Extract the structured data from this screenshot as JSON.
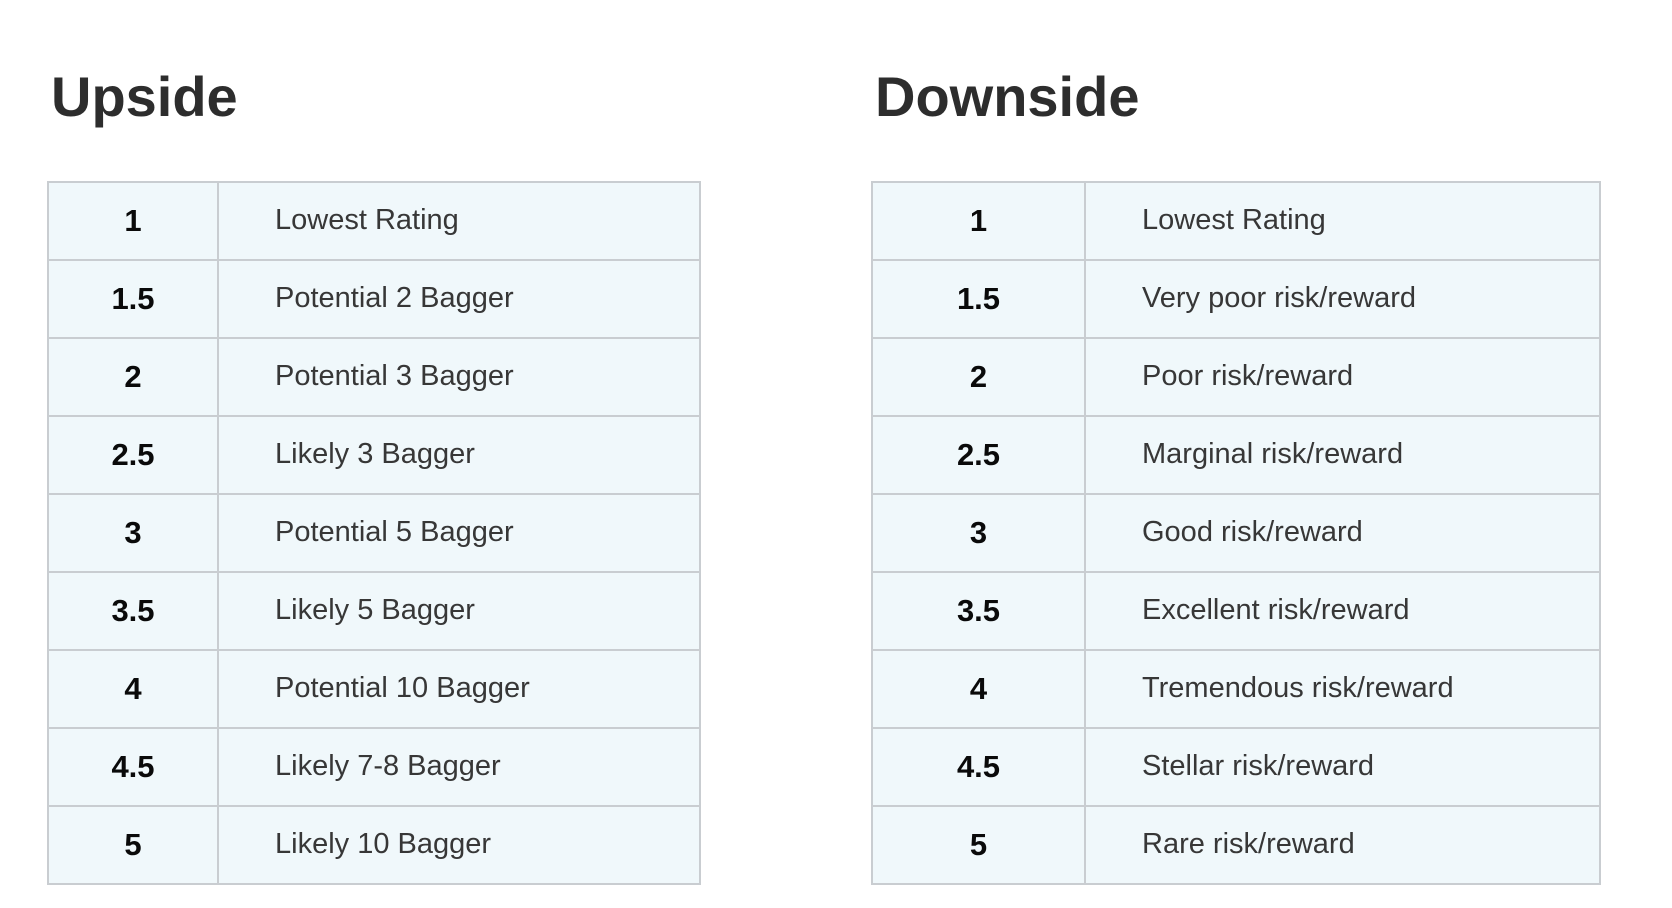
{
  "panels": [
    {
      "title": "Upside",
      "rows": [
        {
          "rating": "1",
          "label": "Lowest Rating"
        },
        {
          "rating": "1.5",
          "label": "Potential 2 Bagger"
        },
        {
          "rating": "2",
          "label": "Potential 3 Bagger"
        },
        {
          "rating": "2.5",
          "label": "Likely 3 Bagger"
        },
        {
          "rating": "3",
          "label": "Potential 5 Bagger"
        },
        {
          "rating": "3.5",
          "label": "Likely 5 Bagger"
        },
        {
          "rating": "4",
          "label": "Potential 10 Bagger"
        },
        {
          "rating": "4.5",
          "label": "Likely 7-8 Bagger"
        },
        {
          "rating": "5",
          "label": "Likely 10 Bagger"
        }
      ]
    },
    {
      "title": "Downside",
      "rows": [
        {
          "rating": "1",
          "label": "Lowest Rating"
        },
        {
          "rating": "1.5",
          "label": "Very poor risk/reward"
        },
        {
          "rating": "2",
          "label": "Poor risk/reward"
        },
        {
          "rating": "2.5",
          "label": "Marginal risk/reward"
        },
        {
          "rating": "3",
          "label": "Good risk/reward"
        },
        {
          "rating": "3.5",
          "label": "Excellent risk/reward"
        },
        {
          "rating": "4",
          "label": "Tremendous risk/reward"
        },
        {
          "rating": "4.5",
          "label": "Stellar risk/reward"
        },
        {
          "rating": "5",
          "label": "Rare risk/reward"
        }
      ]
    }
  ],
  "colors": {
    "page_bg": "#ffffff",
    "cell_bg": "#f0f8fb",
    "border": "#c9cdd1",
    "heading_text": "#2d2d2d",
    "rating_text": "#0a0a0a",
    "description_text": "#373737"
  }
}
